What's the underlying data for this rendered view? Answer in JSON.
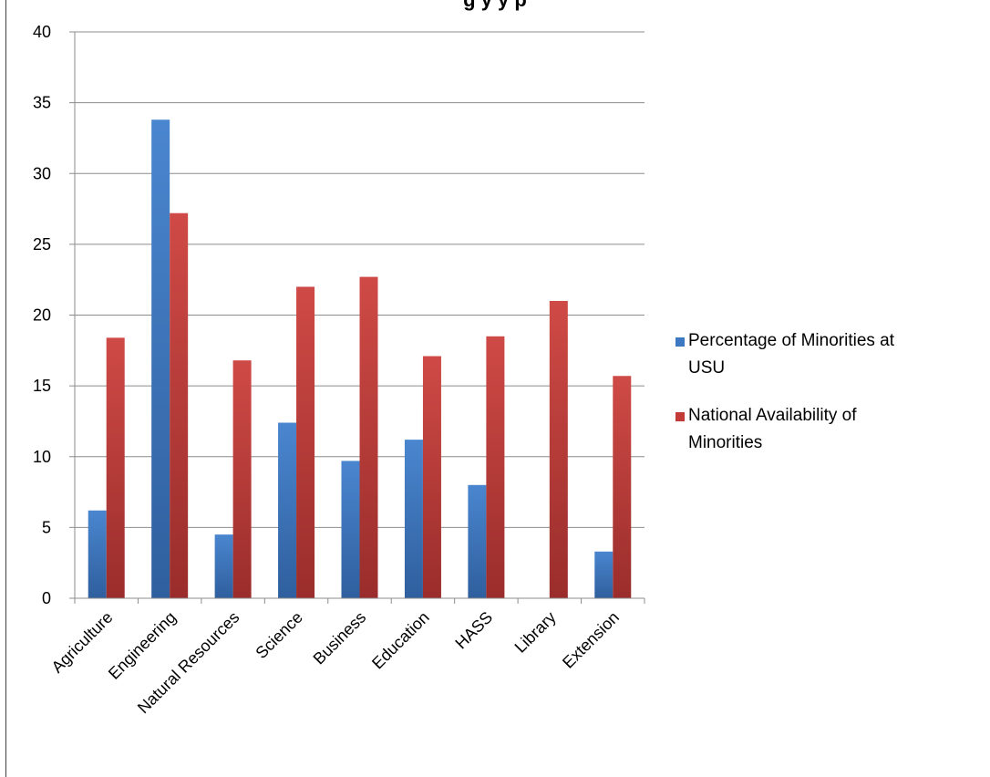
{
  "chart_data": {
    "type": "bar",
    "title": "g   y y     p",
    "categories": [
      "Agriculture",
      "Engineering",
      "Natural Resources",
      "Science",
      "Business",
      "Education",
      "HASS",
      "Library",
      "Extension"
    ],
    "series": [
      {
        "name": "Percentage of Minorities at USU",
        "values": [
          6.2,
          33.8,
          4.5,
          12.4,
          9.7,
          11.2,
          8.0,
          0,
          3.3
        ]
      },
      {
        "name": "National Availability of Minorities",
        "values": [
          18.4,
          27.2,
          16.8,
          22.0,
          22.7,
          17.1,
          18.5,
          21.0,
          15.7
        ]
      }
    ],
    "colors": [
      "#3d78c2",
      "#c23b38"
    ],
    "y_ticks": [
      0,
      5,
      10,
      15,
      20,
      25,
      30,
      35,
      40
    ],
    "ylim": [
      0,
      40
    ],
    "grid": true,
    "legend_position": "right",
    "legend_lines": [
      [
        "Percentage of Minorities at",
        "USU"
      ],
      [
        "National Availability of",
        "Minorities"
      ]
    ]
  }
}
